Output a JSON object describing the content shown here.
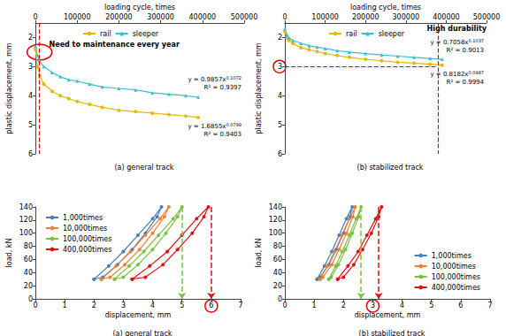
{
  "chart_data": [
    {
      "type": "line",
      "title": "(a) general track",
      "xlabel": "loading cycle, times",
      "ylabel": "plastic displacement, mm",
      "x": [
        0,
        5000,
        10000,
        20000,
        40000,
        60000,
        80000,
        100000,
        130000,
        160000,
        200000,
        240000,
        280000,
        320000,
        360000,
        390000
      ],
      "xlim": [
        0,
        500000
      ],
      "xticks": [
        0,
        100000,
        200000,
        300000,
        400000,
        500000
      ],
      "ylim": [
        6,
        1.5
      ],
      "yticks": [
        2,
        3,
        4,
        5,
        6
      ],
      "grid": false,
      "legend": "upper center",
      "series": [
        {
          "name": "rail",
          "color": "#e6b800",
          "marker": "circle",
          "values": [
            2.4,
            3.0,
            3.3,
            3.6,
            3.85,
            4.0,
            4.1,
            4.2,
            4.3,
            4.4,
            4.5,
            4.55,
            4.6,
            4.65,
            4.7,
            4.75
          ],
          "equation": "y = 1.6855x",
          "exponent": "0.0799",
          "r2": "R² = 0.9403"
        },
        {
          "name": "sleeper",
          "color": "#3cbcd4",
          "marker": "triangle",
          "values": [
            2.3,
            2.6,
            2.8,
            3.0,
            3.2,
            3.35,
            3.45,
            3.5,
            3.6,
            3.7,
            3.75,
            3.8,
            3.9,
            3.95,
            4.0,
            4.05
          ],
          "equation": "y = 0.9857x",
          "exponent": "0.1072",
          "r2": "R² = 0.9397"
        }
      ],
      "annotation": {
        "text": "Need to maintenance every year",
        "x": 345000,
        "y": 2.25
      },
      "ref_x": 10000,
      "highlight_point": [
        10000,
        2.5
      ]
    },
    {
      "type": "line",
      "title": "(b) stabilized track",
      "xlabel": "loading cycle, times",
      "ylabel": "plastic displacement, mm",
      "x": [
        0,
        5000,
        10000,
        20000,
        40000,
        60000,
        80000,
        100000,
        130000,
        160000,
        200000,
        240000,
        280000,
        320000,
        360000,
        390000
      ],
      "xlim": [
        0,
        500000
      ],
      "xticks": [
        0,
        100000,
        200000,
        300000,
        400000,
        500000
      ],
      "ylim": [
        6,
        1.5
      ],
      "yticks": [
        2,
        3,
        4,
        5,
        6
      ],
      "grid": false,
      "legend": "upper center",
      "series": [
        {
          "name": "rail",
          "color": "#e6b800",
          "marker": "circle",
          "values": [
            1.8,
            2.0,
            2.1,
            2.2,
            2.35,
            2.42,
            2.48,
            2.55,
            2.62,
            2.68,
            2.75,
            2.8,
            2.85,
            2.88,
            2.92,
            2.95
          ],
          "equation": "y = 0.8182x",
          "exponent": "0.0987",
          "r2": "R² = 0.9994"
        },
        {
          "name": "sleeper",
          "color": "#3cbcd4",
          "marker": "triangle",
          "values": [
            1.7,
            1.9,
            2.0,
            2.1,
            2.2,
            2.28,
            2.33,
            2.38,
            2.45,
            2.5,
            2.55,
            2.6,
            2.64,
            2.68,
            2.72,
            2.75
          ],
          "equation": "y = 0.7058x",
          "exponent": "0.1037",
          "r2": "R² = 0.9013"
        }
      ],
      "annotation": {
        "text": "High durability",
        "x": 500000,
        "y": 1.7
      },
      "ref_x": 380000,
      "ref_y": 3,
      "highlight_ytick": 3
    },
    {
      "type": "line",
      "title": "(a) general track",
      "xlabel": "displacement, mm",
      "ylabel": "load, kN",
      "xlim": [
        0,
        7
      ],
      "xticks": [
        0,
        1,
        2,
        3,
        4,
        5,
        6,
        7
      ],
      "ylim": [
        0,
        140
      ],
      "yticks": [
        0,
        20,
        40,
        60,
        80,
        100,
        120,
        140
      ],
      "grid": false,
      "legend": "upper left",
      "series": [
        {
          "name": "1,000times",
          "color": "#4a7ebb",
          "marker": "circle",
          "x": [
            2.0,
            2.5,
            3.0,
            3.5,
            4.0,
            4.3,
            4.15,
            3.75,
            3.3,
            2.8,
            2.3,
            2.0
          ],
          "values": [
            30,
            50,
            72,
            97,
            122,
            140,
            125,
            100,
            75,
            52,
            33,
            30
          ]
        },
        {
          "name": "10,000times",
          "color": "#f08030",
          "marker": "circle",
          "x": [
            2.25,
            2.75,
            3.25,
            3.75,
            4.25,
            4.55,
            4.4,
            4.0,
            3.55,
            3.05,
            2.55,
            2.25
          ],
          "values": [
            30,
            50,
            72,
            97,
            122,
            140,
            125,
            100,
            75,
            52,
            33,
            30
          ]
        },
        {
          "name": "100,000times",
          "color": "#7ac143",
          "marker": "circle",
          "x": [
            2.7,
            3.2,
            3.7,
            4.2,
            4.7,
            5.0,
            4.85,
            4.45,
            4.0,
            3.5,
            3.0,
            2.7
          ],
          "values": [
            30,
            50,
            72,
            97,
            122,
            140,
            125,
            100,
            75,
            52,
            33,
            30
          ],
          "arrow_x": 5
        },
        {
          "name": "400,000times",
          "color": "#e01010",
          "marker": "circle",
          "x": [
            3.3,
            3.9,
            4.5,
            5.0,
            5.5,
            5.9,
            5.75,
            5.35,
            4.85,
            4.35,
            3.75,
            3.3
          ],
          "values": [
            30,
            50,
            72,
            97,
            122,
            140,
            125,
            100,
            75,
            52,
            33,
            30
          ],
          "arrow_x": 6
        }
      ],
      "highlight_xtick": 6
    },
    {
      "type": "line",
      "title": "(b) stabilized track",
      "xlabel": "displacement, mm",
      "ylabel": "load, kN",
      "xlim": [
        0,
        7
      ],
      "xticks": [
        0,
        1,
        2,
        3,
        4,
        5,
        6,
        7
      ],
      "ylim": [
        0,
        140
      ],
      "yticks": [
        0,
        20,
        40,
        60,
        80,
        100,
        120,
        140
      ],
      "grid": false,
      "legend": "lower right",
      "series": [
        {
          "name": "1,000times",
          "color": "#4a7ebb",
          "marker": "circle",
          "x": [
            1.1,
            1.35,
            1.6,
            1.85,
            2.1,
            2.3,
            2.22,
            2.0,
            1.75,
            1.5,
            1.2,
            1.1
          ],
          "values": [
            30,
            50,
            72,
            97,
            122,
            140,
            125,
            100,
            75,
            52,
            33,
            30
          ]
        },
        {
          "name": "10,000times",
          "color": "#f08030",
          "marker": "circle",
          "x": [
            1.2,
            1.45,
            1.7,
            1.95,
            2.2,
            2.4,
            2.32,
            2.1,
            1.85,
            1.6,
            1.3,
            1.2
          ],
          "values": [
            30,
            50,
            72,
            97,
            122,
            140,
            125,
            100,
            75,
            52,
            33,
            30
          ]
        },
        {
          "name": "100,000times",
          "color": "#7ac143",
          "marker": "circle",
          "x": [
            1.5,
            1.73,
            1.96,
            2.2,
            2.43,
            2.6,
            2.52,
            2.3,
            2.07,
            1.83,
            1.58,
            1.5
          ],
          "values": [
            30,
            50,
            72,
            97,
            122,
            140,
            125,
            100,
            75,
            52,
            33,
            30
          ],
          "arrow_x": 2.6
        },
        {
          "name": "400,000times",
          "color": "#e01010",
          "marker": "circle",
          "x": [
            1.8,
            2.15,
            2.5,
            2.8,
            3.1,
            3.3,
            3.2,
            2.95,
            2.65,
            2.35,
            2.0,
            1.8
          ],
          "values": [
            30,
            50,
            72,
            97,
            122,
            140,
            125,
            100,
            75,
            52,
            33,
            30
          ],
          "arrow_x": 3.2
        }
      ],
      "highlight_xtick": 3
    }
  ]
}
